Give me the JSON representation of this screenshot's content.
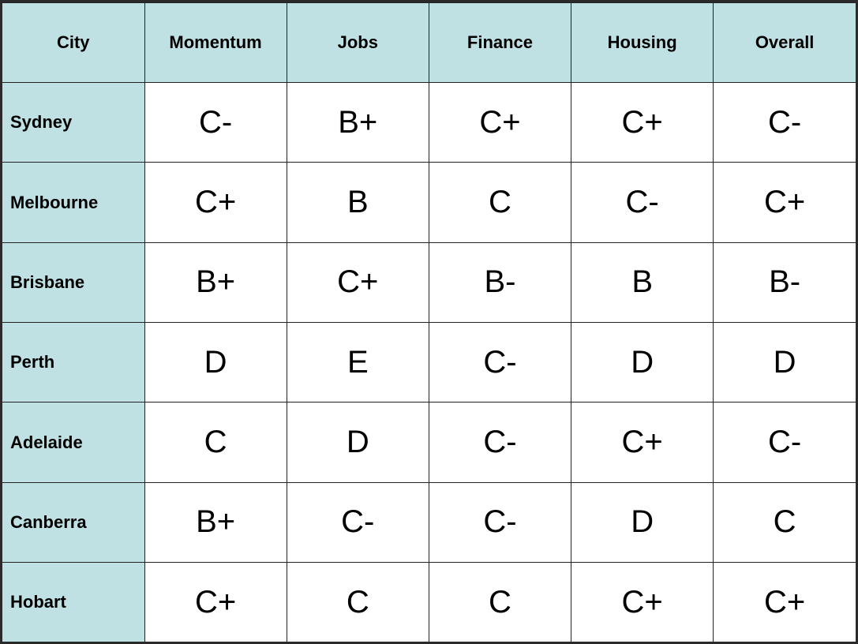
{
  "table": {
    "header": [
      "City",
      "Momentum",
      "Jobs",
      "Finance",
      "Housing",
      "Overall"
    ],
    "rows": [
      [
        "Sydney",
        "C-",
        "B+",
        "C+",
        "C+",
        "C-"
      ],
      [
        "Melbourne",
        "C+",
        "B",
        "C",
        "C-",
        "C+"
      ],
      [
        "Brisbane",
        "B+",
        "C+",
        "B-",
        "B",
        "B-"
      ],
      [
        "Perth",
        "D",
        "E",
        "C-",
        "D",
        "D"
      ],
      [
        "Adelaide",
        "C",
        "D",
        "C-",
        "C+",
        "C-"
      ],
      [
        "Canberra",
        "B+",
        "C-",
        "C-",
        "D",
        "C"
      ],
      [
        "Hobart",
        "C+",
        "C",
        "C",
        "C+",
        "C+"
      ]
    ]
  }
}
